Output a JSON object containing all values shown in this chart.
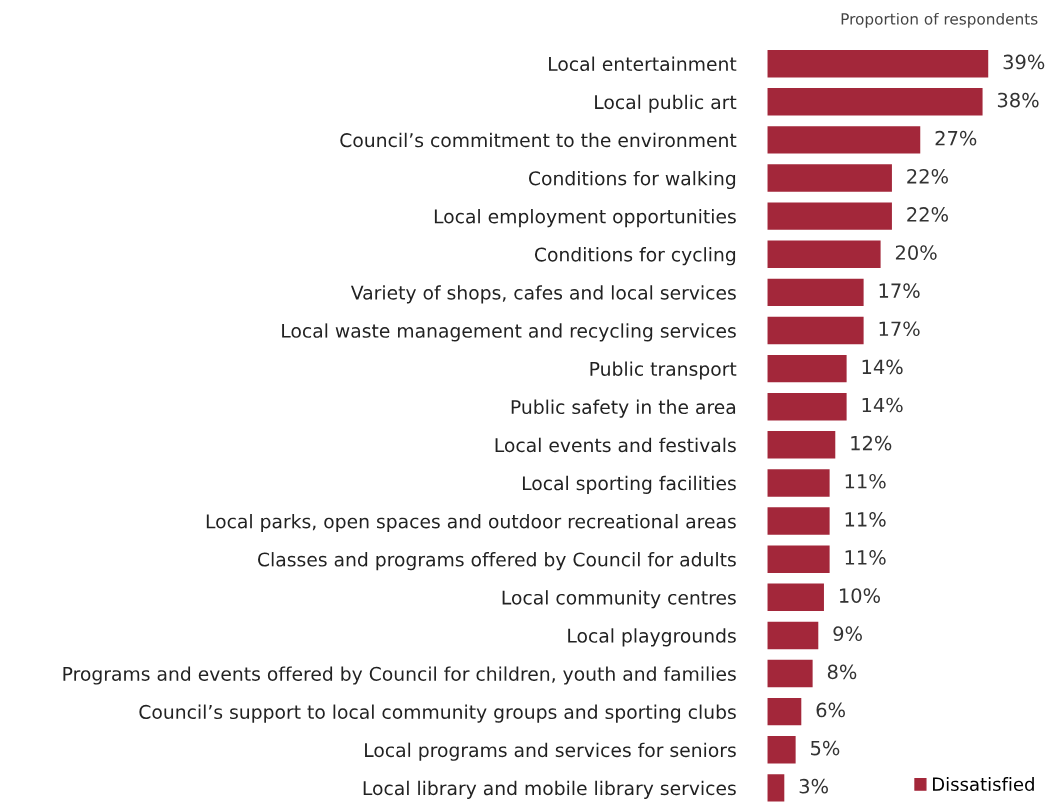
{
  "chart_data": {
    "type": "bar",
    "orientation": "horizontal",
    "categories": [
      "Local entertainment",
      "Local public art",
      "Council’s commitment to the environment",
      "Conditions for walking",
      "Local employment opportunities",
      "Conditions for cycling",
      "Variety of shops, cafes and local services",
      "Local waste management and recycling services",
      "Public transport",
      "Public safety in the area",
      "Local events and festivals",
      "Local sporting facilities",
      "Local parks, open spaces and outdoor recreational areas",
      "Classes and programs offered by Council for adults",
      "Local community centres",
      "Local playgrounds",
      "Programs and events offered by Council for children, youth and families",
      "Council’s support to local community groups and sporting clubs",
      "Local programs and services for seniors",
      "Local library and mobile library services"
    ],
    "series": [
      {
        "name": "Dissatisfied",
        "color": "#a3273a",
        "values": [
          39,
          38,
          27,
          22,
          22,
          20,
          17,
          17,
          14,
          14,
          12,
          11,
          11,
          11,
          10,
          9,
          8,
          6,
          5,
          3
        ],
        "value_labels": [
          "39%",
          "38%",
          "27%",
          "22%",
          "22%",
          "20%",
          "17%",
          "17%",
          "14%",
          "14%",
          "12%",
          "11%",
          "11%",
          "11%",
          "10%",
          "9%",
          "8%",
          "6%",
          "5%",
          "3%"
        ]
      }
    ],
    "annotations": [
      "Proportion of respondents"
    ],
    "legend": "bottom right",
    "tick_labels": "y"
  }
}
